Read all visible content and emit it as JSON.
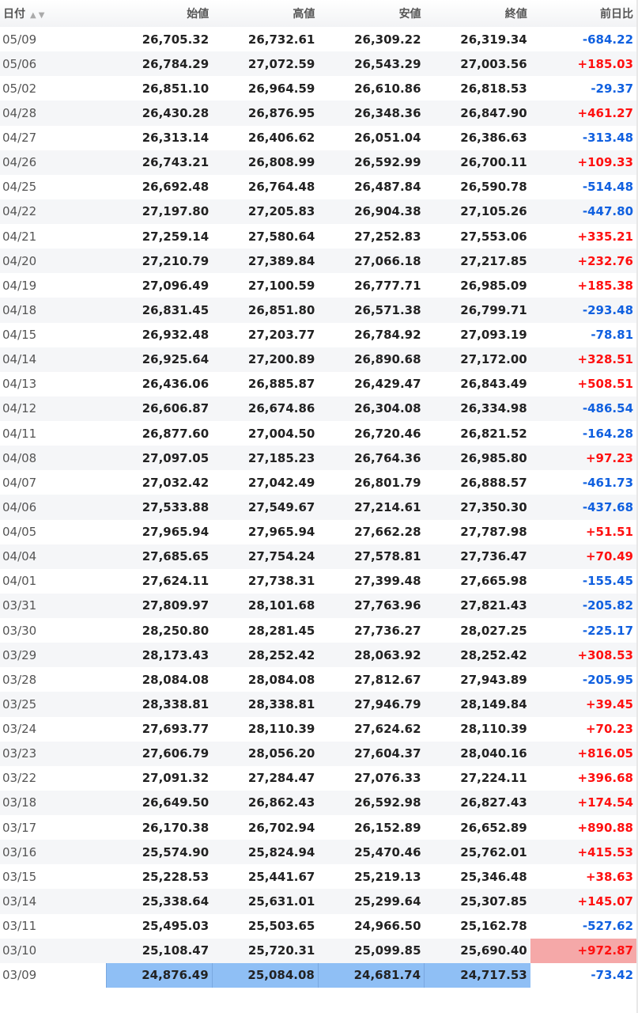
{
  "header": {
    "date": "日付",
    "sort_up_icon": "▲",
    "sort_down_icon": "▼",
    "open": "始値",
    "high": "高値",
    "low": "安値",
    "close": "終値",
    "change": "前日比"
  },
  "colors": {
    "up": "#ff1010",
    "down": "#1060e0",
    "highlight_row": "#8fbff5",
    "highlight_change": "#f5a8a8"
  },
  "rows": [
    [
      "05/09",
      "26,705.32",
      "26,732.61",
      "26,309.22",
      "26,319.34",
      "-684.22"
    ],
    [
      "05/06",
      "26,784.29",
      "27,072.59",
      "26,543.29",
      "27,003.56",
      "+185.03"
    ],
    [
      "05/02",
      "26,851.10",
      "26,964.59",
      "26,610.86",
      "26,818.53",
      "-29.37"
    ],
    [
      "04/28",
      "26,430.28",
      "26,876.95",
      "26,348.36",
      "26,847.90",
      "+461.27"
    ],
    [
      "04/27",
      "26,313.14",
      "26,406.62",
      "26,051.04",
      "26,386.63",
      "-313.48"
    ],
    [
      "04/26",
      "26,743.21",
      "26,808.99",
      "26,592.99",
      "26,700.11",
      "+109.33"
    ],
    [
      "04/25",
      "26,692.48",
      "26,764.48",
      "26,487.84",
      "26,590.78",
      "-514.48"
    ],
    [
      "04/22",
      "27,197.80",
      "27,205.83",
      "26,904.38",
      "27,105.26",
      "-447.80"
    ],
    [
      "04/21",
      "27,259.14",
      "27,580.64",
      "27,252.83",
      "27,553.06",
      "+335.21"
    ],
    [
      "04/20",
      "27,210.79",
      "27,389.84",
      "27,066.18",
      "27,217.85",
      "+232.76"
    ],
    [
      "04/19",
      "27,096.49",
      "27,100.59",
      "26,777.71",
      "26,985.09",
      "+185.38"
    ],
    [
      "04/18",
      "26,831.45",
      "26,851.80",
      "26,571.38",
      "26,799.71",
      "-293.48"
    ],
    [
      "04/15",
      "26,932.48",
      "27,203.77",
      "26,784.92",
      "27,093.19",
      "-78.81"
    ],
    [
      "04/14",
      "26,925.64",
      "27,200.89",
      "26,890.68",
      "27,172.00",
      "+328.51"
    ],
    [
      "04/13",
      "26,436.06",
      "26,885.87",
      "26,429.47",
      "26,843.49",
      "+508.51"
    ],
    [
      "04/12",
      "26,606.87",
      "26,674.86",
      "26,304.08",
      "26,334.98",
      "-486.54"
    ],
    [
      "04/11",
      "26,877.60",
      "27,004.50",
      "26,720.46",
      "26,821.52",
      "-164.28"
    ],
    [
      "04/08",
      "27,097.05",
      "27,185.23",
      "26,764.36",
      "26,985.80",
      "+97.23"
    ],
    [
      "04/07",
      "27,032.42",
      "27,042.49",
      "26,801.79",
      "26,888.57",
      "-461.73"
    ],
    [
      "04/06",
      "27,533.88",
      "27,549.67",
      "27,214.61",
      "27,350.30",
      "-437.68"
    ],
    [
      "04/05",
      "27,965.94",
      "27,965.94",
      "27,662.28",
      "27,787.98",
      "+51.51"
    ],
    [
      "04/04",
      "27,685.65",
      "27,754.24",
      "27,578.81",
      "27,736.47",
      "+70.49"
    ],
    [
      "04/01",
      "27,624.11",
      "27,738.31",
      "27,399.48",
      "27,665.98",
      "-155.45"
    ],
    [
      "03/31",
      "27,809.97",
      "28,101.68",
      "27,763.96",
      "27,821.43",
      "-205.82"
    ],
    [
      "03/30",
      "28,250.80",
      "28,281.45",
      "27,736.27",
      "28,027.25",
      "-225.17"
    ],
    [
      "03/29",
      "28,173.43",
      "28,252.42",
      "28,063.92",
      "28,252.42",
      "+308.53"
    ],
    [
      "03/28",
      "28,084.08",
      "28,084.08",
      "27,812.67",
      "27,943.89",
      "-205.95"
    ],
    [
      "03/25",
      "28,338.81",
      "28,338.81",
      "27,946.79",
      "28,149.84",
      "+39.45"
    ],
    [
      "03/24",
      "27,693.77",
      "28,110.39",
      "27,624.62",
      "28,110.39",
      "+70.23"
    ],
    [
      "03/23",
      "27,606.79",
      "28,056.20",
      "27,604.37",
      "28,040.16",
      "+816.05"
    ],
    [
      "03/22",
      "27,091.32",
      "27,284.47",
      "27,076.33",
      "27,224.11",
      "+396.68"
    ],
    [
      "03/18",
      "26,649.50",
      "26,862.43",
      "26,592.98",
      "26,827.43",
      "+174.54"
    ],
    [
      "03/17",
      "26,170.38",
      "26,702.94",
      "26,152.89",
      "26,652.89",
      "+890.88"
    ],
    [
      "03/16",
      "25,574.90",
      "25,824.94",
      "25,470.46",
      "25,762.01",
      "+415.53"
    ],
    [
      "03/15",
      "25,228.53",
      "25,441.67",
      "25,219.13",
      "25,346.48",
      "+38.63"
    ],
    [
      "03/14",
      "25,338.64",
      "25,631.01",
      "25,299.64",
      "25,307.85",
      "+145.07"
    ],
    [
      "03/11",
      "25,495.03",
      "25,503.65",
      "24,966.50",
      "25,162.78",
      "-527.62"
    ],
    [
      "03/10",
      "25,108.47",
      "25,720.31",
      "25,099.85",
      "25,690.40",
      "+972.87"
    ],
    [
      "03/09",
      "24,876.49",
      "25,084.08",
      "24,681.74",
      "24,717.53",
      "-73.42"
    ]
  ],
  "highlights": {
    "max_change_row": "03/10",
    "min_price_row": "03/09"
  }
}
